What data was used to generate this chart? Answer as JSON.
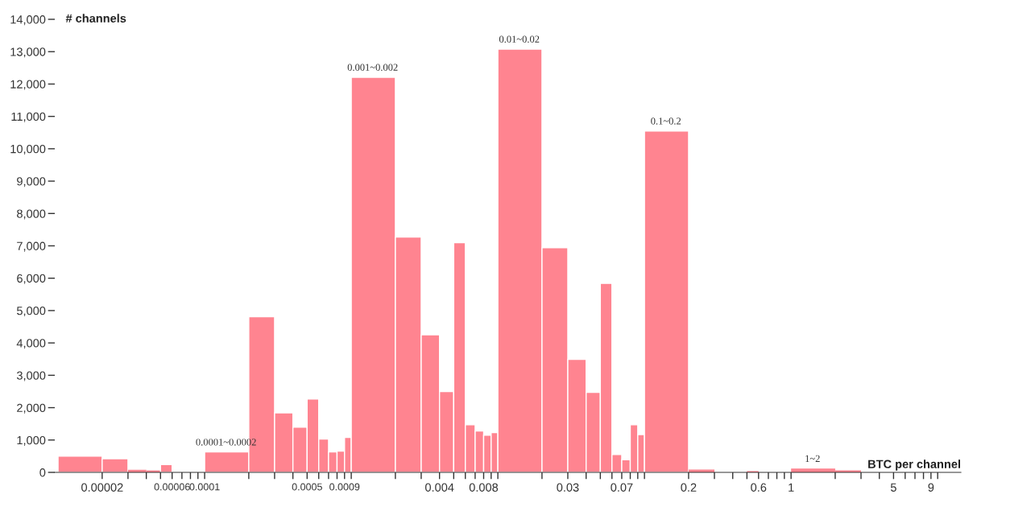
{
  "chart_data": {
    "type": "histogram",
    "xlabel": "BTC per channel",
    "ylabel": "# channels",
    "log": "x",
    "color": "#ff8490",
    "bins": [
      1e-05,
      2e-05,
      3e-05,
      4e-05,
      5e-05,
      6e-05,
      0.0001,
      0.0002,
      0.0003,
      0.0004,
      0.0005,
      0.0006,
      0.0007,
      0.0008,
      0.0009,
      0.001,
      0.002,
      0.003,
      0.004,
      0.005,
      0.006,
      0.007,
      0.008,
      0.009,
      0.01,
      0.02,
      0.03,
      0.04,
      0.05,
      0.06,
      0.07,
      0.08,
      0.09,
      0.1,
      0.2,
      0.3,
      0.5,
      0.6,
      1,
      2,
      3
    ],
    "values": [
      500,
      420,
      80,
      60,
      240,
      0,
      630,
      4810,
      1840,
      1400,
      2270,
      1030,
      630,
      660,
      1080,
      12210,
      7270,
      4250,
      2500,
      7100,
      1470,
      1280,
      1150,
      1230,
      13080,
      6940,
      3490,
      2470,
      5840,
      550,
      390,
      1470,
      1170,
      10550,
      90,
      0,
      40,
      0,
      120,
      60
    ],
    "xlim": [
      9.5e-06,
      14.4
    ],
    "ylim": [
      0,
      14000
    ],
    "xticks": [
      {
        "value": 2e-05,
        "label": "0.00002"
      },
      {
        "value": 3e-05,
        "label": null
      },
      {
        "value": 4e-05,
        "label": null
      },
      {
        "value": 5e-05,
        "label": null
      },
      {
        "value": 6e-05,
        "label": "0.00006"
      },
      {
        "value": 7e-05,
        "label": null
      },
      {
        "value": 8e-05,
        "label": null
      },
      {
        "value": 9e-05,
        "label": null
      },
      {
        "value": 0.0001,
        "label": "0.0001"
      },
      {
        "value": 0.0002,
        "label": null
      },
      {
        "value": 0.0003,
        "label": null
      },
      {
        "value": 0.0004,
        "label": null
      },
      {
        "value": 0.0005,
        "label": "0.0005"
      },
      {
        "value": 0.0006,
        "label": null
      },
      {
        "value": 0.0007,
        "label": null
      },
      {
        "value": 0.0008,
        "label": null
      },
      {
        "value": 0.0009,
        "label": "0.0009"
      },
      {
        "value": 0.001,
        "label": null
      },
      {
        "value": 0.002,
        "label": null
      },
      {
        "value": 0.003,
        "label": null
      },
      {
        "value": 0.004,
        "label": "0.004"
      },
      {
        "value": 0.005,
        "label": null
      },
      {
        "value": 0.006,
        "label": null
      },
      {
        "value": 0.007,
        "label": null
      },
      {
        "value": 0.008,
        "label": "0.008"
      },
      {
        "value": 0.009,
        "label": null
      },
      {
        "value": 0.01,
        "label": null
      },
      {
        "value": 0.02,
        "label": null
      },
      {
        "value": 0.03,
        "label": "0.03"
      },
      {
        "value": 0.04,
        "label": null
      },
      {
        "value": 0.05,
        "label": null
      },
      {
        "value": 0.06,
        "label": null
      },
      {
        "value": 0.07,
        "label": "0.07"
      },
      {
        "value": 0.08,
        "label": null
      },
      {
        "value": 0.09,
        "label": null
      },
      {
        "value": 0.1,
        "label": null
      },
      {
        "value": 0.2,
        "label": "0.2"
      },
      {
        "value": 0.3,
        "label": null
      },
      {
        "value": 0.4,
        "label": null
      },
      {
        "value": 0.5,
        "label": null
      },
      {
        "value": 0.6,
        "label": "0.6"
      },
      {
        "value": 0.7,
        "label": null
      },
      {
        "value": 0.8,
        "label": null
      },
      {
        "value": 0.9,
        "label": null
      },
      1,
      {
        "value": 2,
        "label": null
      },
      {
        "value": 3,
        "label": null
      },
      {
        "value": 4,
        "label": null
      },
      5,
      {
        "value": 6,
        "label": null
      },
      {
        "value": 7,
        "label": null
      },
      {
        "value": 8,
        "label": null
      },
      9,
      {
        "value": 10,
        "label": null
      }
    ],
    "yticks": [
      0,
      {
        "value": 1000,
        "label": "1,000"
      },
      {
        "value": 2000,
        "label": "2,000"
      },
      {
        "value": 3000,
        "label": "3,000"
      },
      {
        "value": 4000,
        "label": "4,000"
      },
      {
        "value": 5000,
        "label": "5,000"
      },
      {
        "value": 6000,
        "label": "6,000"
      },
      {
        "value": 7000,
        "label": "7,000"
      },
      {
        "value": 8000,
        "label": "8,000"
      },
      {
        "value": 9000,
        "label": "9,000"
      },
      {
        "value": 10000,
        "label": "10,000"
      },
      {
        "value": 11000,
        "label": "11,000"
      },
      {
        "value": 12000,
        "label": "12,000"
      },
      {
        "value": 13000,
        "label": "13,000"
      },
      {
        "value": 14000,
        "label": "14,000"
      }
    ],
    "annotations": [
      {
        "text": "0.0001~0.0002",
        "x": 0.00014,
        "y": 630
      },
      {
        "text": "0.001~0.002",
        "x": 0.0014,
        "y": 12210
      },
      {
        "text": "0.01~0.02",
        "x": 0.014,
        "y": 13080
      },
      {
        "text": "0.1~0.2",
        "x": 0.14,
        "y": 10550
      },
      {
        "text": "1~2",
        "x": 1.4,
        "y": 120
      }
    ]
  }
}
